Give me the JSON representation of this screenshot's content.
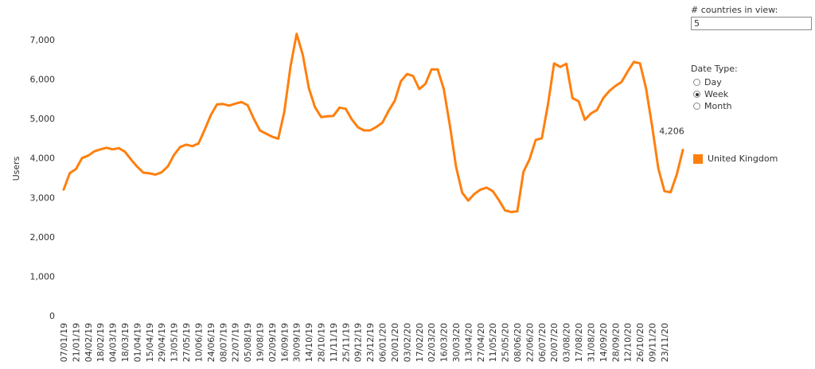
{
  "controls": {
    "countries_label": "# countries in view:",
    "countries_value": "5",
    "date_type_label": "Date Type:",
    "date_type_options": [
      {
        "label": "Day",
        "checked": false
      },
      {
        "label": "Week",
        "checked": true
      },
      {
        "label": "Month",
        "checked": false
      }
    ]
  },
  "legend": {
    "label": "United Kingdom",
    "color": "#FF7F0E"
  },
  "chart_data": {
    "type": "line",
    "ylabel": "Users",
    "xlabel": "",
    "ylim": [
      0,
      7500
    ],
    "yticks": [
      0,
      1000,
      2000,
      3000,
      4000,
      5000,
      6000,
      7000
    ],
    "ytick_labels": [
      "0",
      "1,000",
      "2,000",
      "3,000",
      "4,000",
      "5,000",
      "6,000",
      "7,000"
    ],
    "xtick_labels": [
      "07/01/19",
      "21/01/19",
      "04/02/19",
      "18/02/19",
      "04/03/19",
      "18/03/19",
      "01/04/19",
      "15/04/19",
      "29/04/19",
      "13/05/19",
      "27/05/19",
      "10/06/19",
      "24/06/19",
      "08/07/19",
      "22/07/19",
      "05/08/19",
      "19/08/19",
      "02/09/19",
      "16/09/19",
      "30/09/19",
      "14/10/19",
      "28/10/19",
      "11/11/19",
      "25/11/19",
      "09/12/19",
      "23/12/19",
      "06/01/20",
      "20/01/20",
      "03/02/20",
      "17/02/20",
      "02/03/20",
      "16/03/20",
      "30/03/20",
      "13/04/20",
      "27/04/20",
      "11/05/20",
      "25/05/20",
      "08/06/20",
      "22/06/20",
      "06/07/20",
      "20/07/20",
      "03/08/20",
      "17/08/20",
      "31/08/20",
      "14/09/20",
      "28/09/20",
      "12/10/20",
      "26/10/20",
      "09/11/20",
      "23/11/20"
    ],
    "series": [
      {
        "name": "United Kingdom",
        "color": "#FF7F0E",
        "end_label": "4,206",
        "values": [
          3200,
          3620,
          3720,
          4000,
          4060,
          4170,
          4220,
          4260,
          4220,
          4250,
          4160,
          3960,
          3780,
          3630,
          3610,
          3580,
          3640,
          3790,
          4080,
          4280,
          4340,
          4300,
          4370,
          4720,
          5090,
          5360,
          5370,
          5330,
          5380,
          5420,
          5340,
          5000,
          4700,
          4620,
          4540,
          4490,
          5180,
          6320,
          7150,
          6620,
          5770,
          5290,
          5040,
          5060,
          5070,
          5280,
          5250,
          4980,
          4780,
          4700,
          4700,
          4790,
          4900,
          5200,
          5450,
          5950,
          6130,
          6080,
          5750,
          5880,
          6250,
          6250,
          5750,
          4820,
          3780,
          3120,
          2920,
          3090,
          3200,
          3250,
          3160,
          2930,
          2670,
          2630,
          2650,
          3650,
          3970,
          4460,
          4500,
          5360,
          6400,
          6310,
          6390,
          5520,
          5440,
          4970,
          5130,
          5220,
          5520,
          5700,
          5830,
          5930,
          6200,
          6440,
          6400,
          5760,
          4790,
          3730,
          3160,
          3130,
          3580,
          4206
        ]
      }
    ]
  }
}
